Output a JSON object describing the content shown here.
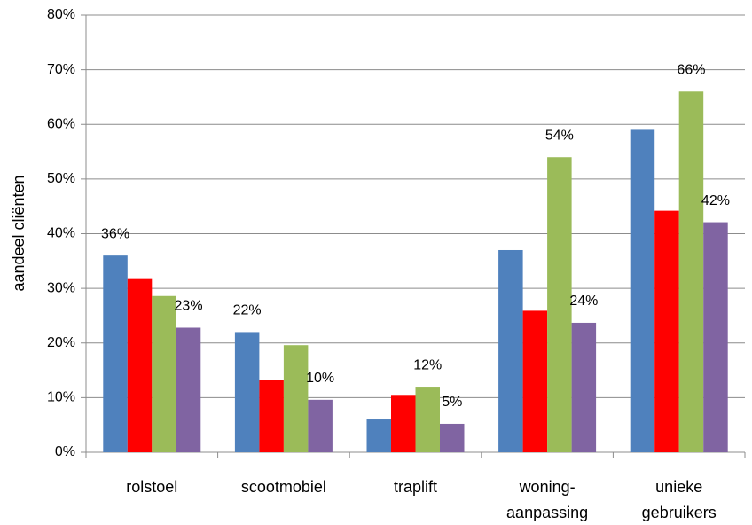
{
  "chart_data": {
    "type": "bar",
    "y_label": "aandeel cliënten",
    "categories": [
      "rolstoel",
      "scootmobiel",
      "traplift",
      "woning-\naanpassing",
      "unieke\ngebruikers"
    ],
    "series": [
      {
        "color": "#4f81bd",
        "values": [
          36,
          22,
          6,
          37,
          59
        ],
        "value_labels": [
          "36%",
          "22%",
          null,
          null,
          null
        ]
      },
      {
        "color": "#ff0000",
        "values": [
          31.7,
          13.3,
          10.5,
          25.9,
          44.2
        ],
        "value_labels": [
          null,
          null,
          null,
          null,
          null
        ]
      },
      {
        "color": "#9bbb59",
        "values": [
          28.6,
          19.6,
          12,
          54,
          66
        ],
        "value_labels": [
          null,
          null,
          "12%",
          "54%",
          "66%"
        ]
      },
      {
        "color": "#8064a2",
        "values": [
          22.8,
          9.6,
          5.2,
          23.7,
          42.1
        ],
        "value_labels": [
          "23%",
          "10%",
          "5%",
          "24%",
          "42%"
        ]
      }
    ],
    "ylim": [
      0,
      80
    ],
    "yticks": [
      {
        "value": 0,
        "label": "0%"
      },
      {
        "value": 10,
        "label": "10%"
      },
      {
        "value": 20,
        "label": "20%"
      },
      {
        "value": 30,
        "label": "30%"
      },
      {
        "value": 40,
        "label": "40%"
      },
      {
        "value": 50,
        "label": "50%"
      },
      {
        "value": 60,
        "label": "60%"
      },
      {
        "value": 70,
        "label": "70%"
      },
      {
        "value": 80,
        "label": "80%"
      }
    ],
    "grid": true
  }
}
